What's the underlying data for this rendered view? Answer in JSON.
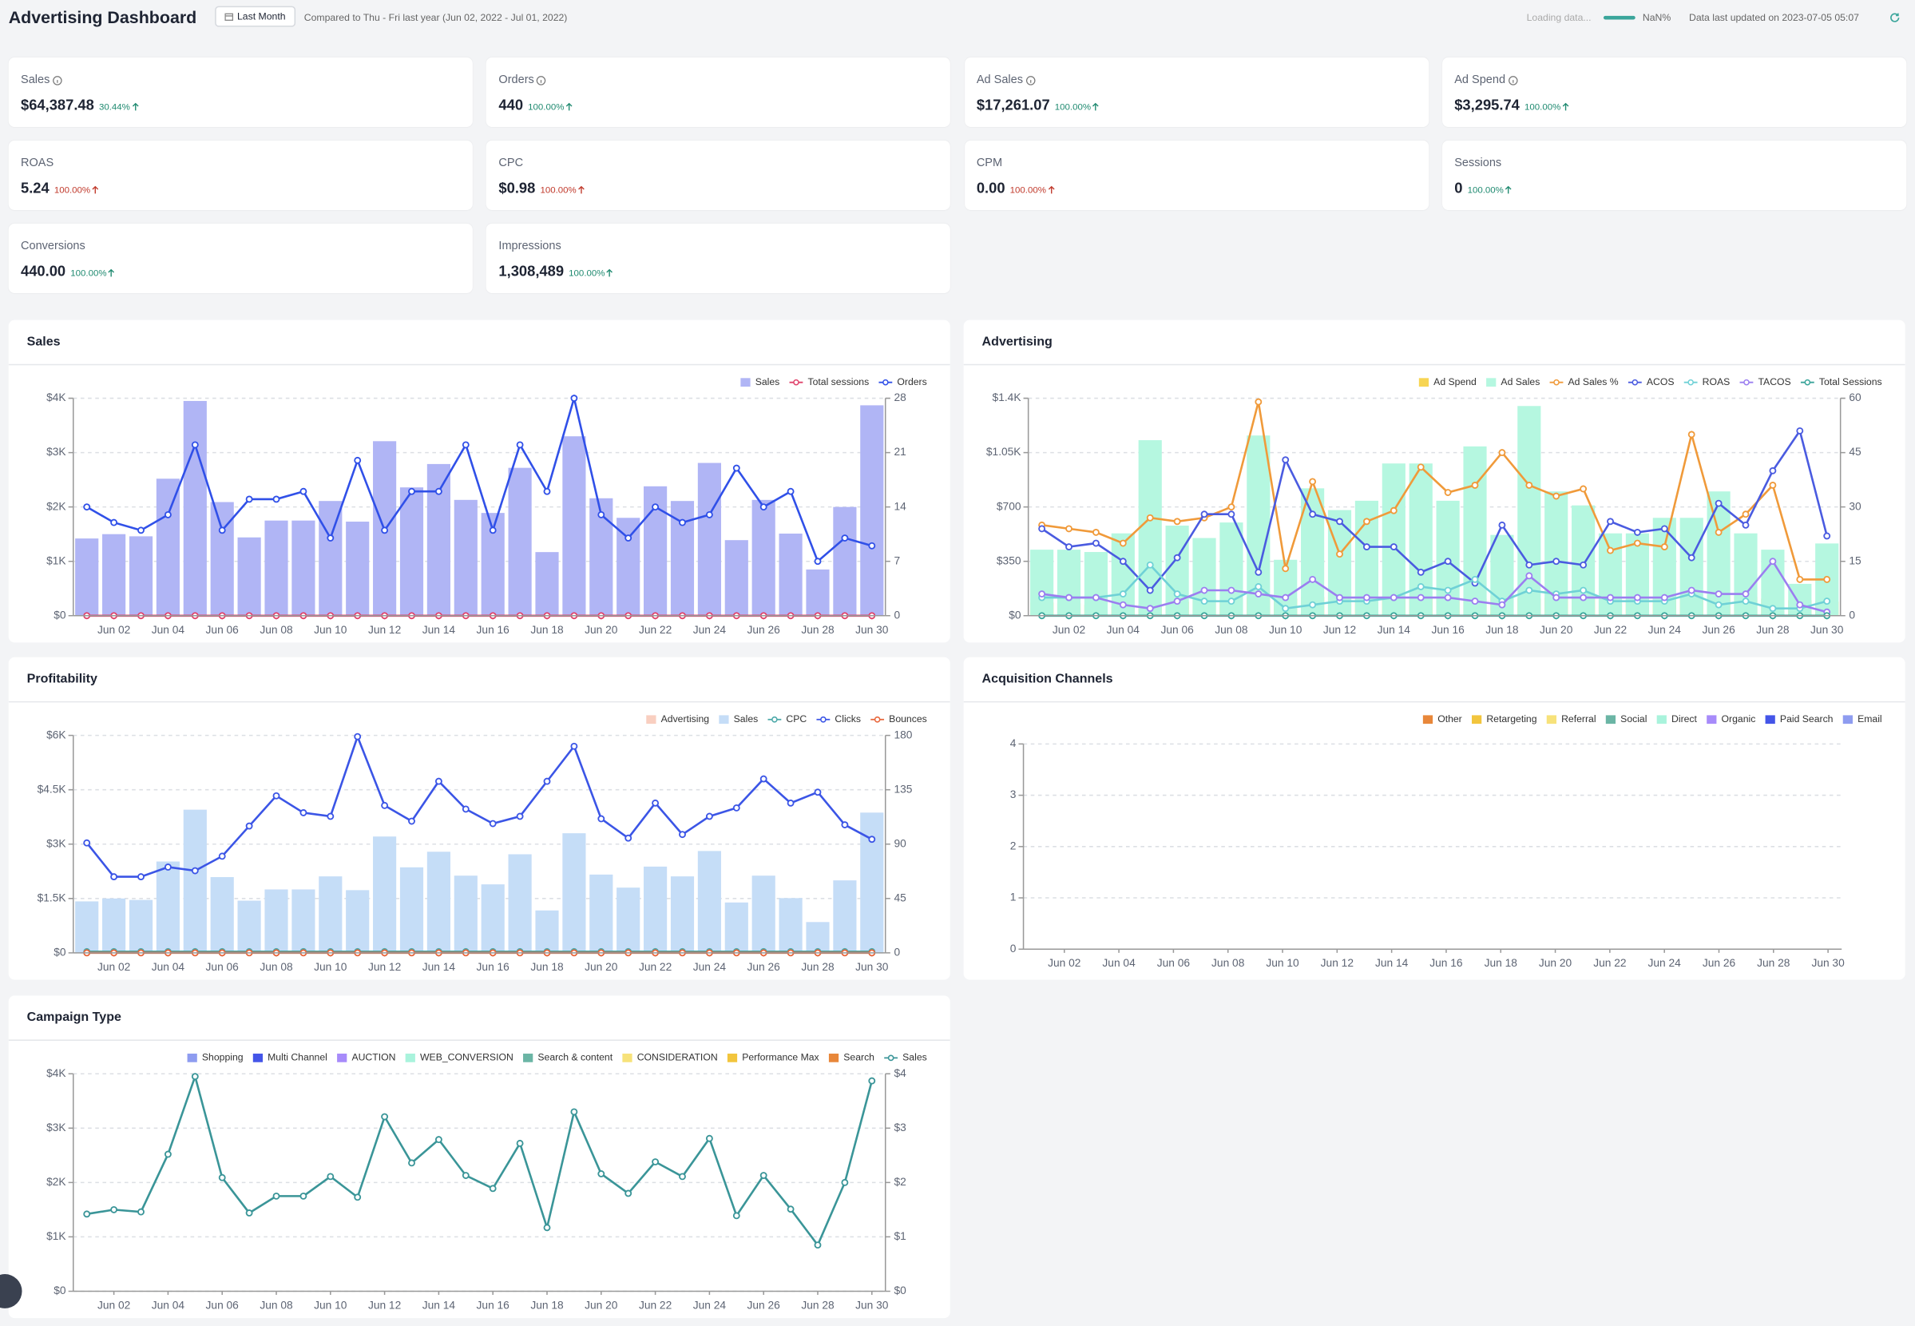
{
  "header": {
    "title": "Advertising Dashboard",
    "range_button": "Last Month",
    "comparison": "Compared to Thu - Fri last year (Jun 02, 2022 - Jul 01, 2022)",
    "loading": "Loading data...",
    "progress": "NaN%",
    "updated": "Data last updated on 2023-07-05 05:07"
  },
  "kpis": [
    {
      "label": "Sales",
      "value": "$64,387.48",
      "change": "30.44%",
      "color": "#1f8a70"
    },
    {
      "label": "Orders",
      "value": "440",
      "change": "100.00%",
      "color": "#1f8a70"
    },
    {
      "label": "Ad Sales",
      "value": "$17,261.07",
      "change": "100.00%",
      "color": "#1f8a70"
    },
    {
      "label": "Ad Spend",
      "value": "$3,295.74",
      "change": "100.00%",
      "color": "#1f8a70"
    },
    {
      "label": "ROAS",
      "value": "5.24",
      "change": "100.00%",
      "color": "#c0392b"
    },
    {
      "label": "CPC",
      "value": "$0.98",
      "change": "100.00%",
      "color": "#c0392b"
    },
    {
      "label": "CPM",
      "value": "0.00",
      "change": "100.00%",
      "color": "#c0392b"
    },
    {
      "label": "Sessions",
      "value": "0",
      "change": "100.00%",
      "color": "#1f8a70"
    },
    {
      "label": "Conversions",
      "value": "440.00",
      "change": "100.00%",
      "color": "#1f8a70"
    },
    {
      "label": "Impressions",
      "value": "1,308,489",
      "change": "100.00%",
      "color": "#1f8a70"
    }
  ],
  "chart_data": [
    {
      "type": "combo",
      "title": "Sales",
      "categories": [
        null,
        "Jun 02",
        null,
        "Jun 04",
        null,
        "Jun 06",
        null,
        "Jun 08",
        null,
        "Jun 10",
        null,
        "Jun 12",
        null,
        "Jun 14",
        null,
        "Jun 16",
        null,
        "Jun 18",
        null,
        "Jun 20",
        null,
        "Jun 22",
        null,
        "Jun 24",
        null,
        "Jun 26",
        null,
        "Jun 28",
        null,
        "Jun 30"
      ],
      "ylim": [
        0,
        4000
      ],
      "yticks": [
        {
          "value": 0,
          "label": "$0"
        },
        {
          "value": 1000,
          "label": "$1K"
        },
        {
          "value": 2000,
          "label": "$2K"
        },
        {
          "value": 3000,
          "label": "$3K"
        },
        {
          "value": 4000,
          "label": "$4K"
        }
      ],
      "y2lim": [
        0,
        28
      ],
      "y2ticks": [
        0,
        7,
        14,
        21,
        28
      ],
      "grid": true,
      "legend": "top-right",
      "series": [
        {
          "name": "Sales",
          "type": "bar",
          "color": "#b0b5f5",
          "values": [
            1420,
            1500,
            1460,
            2520,
            3950,
            2090,
            1440,
            1750,
            1750,
            2110,
            1730,
            3210,
            2360,
            2790,
            2130,
            1890,
            2720,
            1170,
            3300,
            2160,
            1800,
            2380,
            2110,
            2810,
            1390,
            2130,
            1510,
            850,
            2000,
            3870
          ]
        },
        {
          "name": "Total sessions",
          "type": "line",
          "axis": "y2",
          "color": "#e0436b",
          "values": [
            0,
            0,
            0,
            0,
            0,
            0,
            0,
            0,
            0,
            0,
            0,
            0,
            0,
            0,
            0,
            0,
            0,
            0,
            0,
            0,
            0,
            0,
            0,
            0,
            0,
            0,
            0,
            0,
            0,
            0
          ]
        },
        {
          "name": "Orders",
          "type": "line",
          "axis": "y2",
          "color": "#3050e8",
          "values": [
            14,
            12,
            11,
            13,
            22,
            11,
            15,
            15,
            16,
            10,
            20,
            11,
            16,
            16,
            22,
            11,
            22,
            16,
            28,
            13,
            10,
            14,
            12,
            13,
            19,
            14,
            16,
            7,
            10,
            9
          ]
        }
      ]
    },
    {
      "type": "combo",
      "title": "Advertising",
      "categories": [
        null,
        "Jun 02",
        null,
        "Jun 04",
        null,
        "Jun 06",
        null,
        "Jun 08",
        null,
        "Jun 10",
        null,
        "Jun 12",
        null,
        "Jun 14",
        null,
        "Jun 16",
        null,
        "Jun 18",
        null,
        "Jun 20",
        null,
        "Jun 22",
        null,
        "Jun 24",
        null,
        "Jun 26",
        null,
        "Jun 28",
        null,
        "Jun 30"
      ],
      "ylim": [
        0,
        1400
      ],
      "yticks": [
        {
          "value": 0,
          "label": "$0"
        },
        {
          "value": 350,
          "label": "$350"
        },
        {
          "value": 700,
          "label": "$700"
        },
        {
          "value": 1050,
          "label": "$1.05K"
        },
        {
          "value": 1400,
          "label": "$1.4K"
        }
      ],
      "y2lim": [
        0,
        60
      ],
      "y2ticks": [
        0,
        15,
        30,
        45,
        60
      ],
      "grid": true,
      "legend": "top-right",
      "series": [
        {
          "name": "Ad Spend",
          "type": "bar",
          "color": "#f7d553",
          "values": [
            85,
            80,
            70,
            60,
            75,
            90,
            110,
            95,
            120,
            110,
            120,
            150,
            130,
            125,
            120,
            115,
            110,
            125,
            110,
            115,
            110,
            100,
            105,
            115,
            110,
            130,
            120,
            110,
            100,
            90
          ]
        },
        {
          "name": "Ad Sales",
          "type": "bar",
          "color": "#b5f7e0",
          "values": [
            425,
            425,
            410,
            530,
            1130,
            580,
            500,
            600,
            1160,
            360,
            820,
            680,
            740,
            980,
            980,
            740,
            1090,
            520,
            1350,
            800,
            710,
            530,
            530,
            630,
            630,
            800,
            530,
            425,
            205,
            465
          ]
        },
        {
          "name": "Ad Sales %",
          "type": "line",
          "axis": "y2",
          "color": "#f09a3a",
          "values": [
            25,
            24,
            23,
            20,
            27,
            26,
            27,
            30,
            59,
            13,
            37,
            17,
            26,
            29,
            41,
            34,
            36,
            45,
            36,
            33,
            35,
            18,
            20,
            19,
            50,
            23,
            28,
            36,
            10,
            10
          ]
        },
        {
          "name": "ACOS",
          "type": "line",
          "axis": "y2",
          "color": "#4a5be0",
          "values": [
            24,
            19,
            20,
            15,
            7,
            16,
            28,
            28,
            12,
            43,
            28,
            26,
            19,
            19,
            12,
            15,
            9,
            25,
            14,
            15,
            14,
            26,
            23,
            24,
            16,
            31,
            25,
            40,
            51,
            22
          ]
        },
        {
          "name": "ROAS",
          "type": "line",
          "axis": "y2",
          "color": "#6fd1d6",
          "values": [
            5,
            5,
            5,
            6,
            14,
            6,
            4,
            4,
            8,
            2,
            3,
            4,
            4,
            5,
            8,
            7,
            10,
            4,
            7,
            6,
            7,
            4,
            4,
            4,
            6,
            3,
            4,
            2,
            2,
            4
          ]
        },
        {
          "name": "TACOS",
          "type": "line",
          "axis": "y2",
          "color": "#9b7ef0",
          "values": [
            6,
            5,
            5,
            3,
            2,
            4,
            7,
            7,
            6,
            5,
            10,
            5,
            5,
            5,
            5,
            5,
            4,
            3,
            11,
            5,
            5,
            5,
            5,
            5,
            7,
            6,
            6,
            15,
            3,
            1
          ]
        },
        {
          "name": "Total Sessions",
          "type": "line",
          "axis": "y2",
          "color": "#3aa59b",
          "values": [
            0,
            0,
            0,
            0,
            0,
            0,
            0,
            0,
            0,
            0,
            0,
            0,
            0,
            0,
            0,
            0,
            0,
            0,
            0,
            0,
            0,
            0,
            0,
            0,
            0,
            0,
            0,
            0,
            0,
            0
          ]
        }
      ]
    },
    {
      "type": "combo",
      "title": "Profitability",
      "categories": [
        null,
        "Jun 02",
        null,
        "Jun 04",
        null,
        "Jun 06",
        null,
        "Jun 08",
        null,
        "Jun 10",
        null,
        "Jun 12",
        null,
        "Jun 14",
        null,
        "Jun 16",
        null,
        "Jun 18",
        null,
        "Jun 20",
        null,
        "Jun 22",
        null,
        "Jun 24",
        null,
        "Jun 26",
        null,
        "Jun 28",
        null,
        "Jun 30"
      ],
      "ylim": [
        0,
        6000
      ],
      "yticks": [
        {
          "value": 0,
          "label": "$0"
        },
        {
          "value": 1500,
          "label": "$1.5K"
        },
        {
          "value": 3000,
          "label": "$3K"
        },
        {
          "value": 4500,
          "label": "$4.5K"
        },
        {
          "value": 6000,
          "label": "$6K"
        }
      ],
      "y2lim": [
        0,
        180
      ],
      "y2ticks": [
        0,
        45,
        90,
        135,
        180
      ],
      "grid": true,
      "legend": "top-right",
      "series": [
        {
          "name": "Advertising",
          "type": "bar",
          "color": "#f9cfc0",
          "values": [
            0,
            0,
            0,
            0,
            0,
            0,
            0,
            0,
            0,
            0,
            0,
            0,
            0,
            0,
            0,
            0,
            0,
            0,
            0,
            0,
            0,
            0,
            0,
            0,
            0,
            0,
            0,
            0,
            0,
            0
          ]
        },
        {
          "name": "Sales",
          "type": "bar",
          "color": "#c5ddf7",
          "values": [
            1420,
            1500,
            1460,
            2520,
            3950,
            2090,
            1440,
            1750,
            1750,
            2110,
            1730,
            3210,
            2360,
            2790,
            2130,
            1890,
            2720,
            1170,
            3300,
            2160,
            1800,
            2380,
            2110,
            2810,
            1390,
            2130,
            1510,
            850,
            2000,
            3870
          ]
        },
        {
          "name": "CPC",
          "type": "line",
          "axis": "y2",
          "color": "#4aa8a8",
          "values": [
            1,
            1,
            1,
            1,
            1,
            1,
            1,
            1,
            1,
            1,
            1,
            1,
            1,
            1,
            1,
            1,
            1,
            1,
            1,
            1,
            1,
            1,
            1,
            1,
            1,
            1,
            1,
            1,
            1,
            1
          ]
        },
        {
          "name": "Clicks",
          "type": "line",
          "axis": "y2",
          "color": "#3b55e6",
          "values": [
            91,
            63,
            63,
            71,
            68,
            80,
            105,
            130,
            116,
            113,
            179,
            122,
            109,
            142,
            119,
            107,
            113,
            142,
            171,
            111,
            95,
            124,
            98,
            113,
            120,
            144,
            124,
            133,
            106,
            94
          ]
        },
        {
          "name": "Bounces",
          "type": "line",
          "axis": "y2",
          "color": "#e8663a",
          "values": [
            0,
            0,
            0,
            0,
            0,
            0,
            0,
            0,
            0,
            0,
            0,
            0,
            0,
            0,
            0,
            0,
            0,
            0,
            0,
            0,
            0,
            0,
            0,
            0,
            0,
            0,
            0,
            0,
            0,
            0
          ]
        }
      ]
    },
    {
      "type": "combo",
      "title": "Acquisition Channels",
      "categories": [
        null,
        "Jun 02",
        null,
        "Jun 04",
        null,
        "Jun 06",
        null,
        "Jun 08",
        null,
        "Jun 10",
        null,
        "Jun 12",
        null,
        "Jun 14",
        null,
        "Jun 16",
        null,
        "Jun 18",
        null,
        "Jun 20",
        null,
        "Jun 22",
        null,
        "Jun 24",
        null,
        "Jun 26",
        null,
        "Jun 28",
        null,
        "Jun 30"
      ],
      "ylim": [
        0,
        4
      ],
      "yticks": [
        0,
        1,
        2,
        3,
        4
      ],
      "grid": true,
      "legend": "top-right",
      "series": [
        {
          "name": "Other",
          "type": "bar",
          "color": "#e8873a"
        },
        {
          "name": "Retargeting",
          "type": "bar",
          "color": "#f2c53d"
        },
        {
          "name": "Referral",
          "type": "bar",
          "color": "#f7e27a"
        },
        {
          "name": "Social",
          "type": "bar",
          "color": "#6bb5a5"
        },
        {
          "name": "Direct",
          "type": "bar",
          "color": "#a9f3dc"
        },
        {
          "name": "Organic",
          "type": "bar",
          "color": "#a78bfa"
        },
        {
          "name": "Paid Search",
          "type": "bar",
          "color": "#4455e8"
        },
        {
          "name": "Email",
          "type": "bar",
          "color": "#8e9cf0"
        }
      ]
    },
    {
      "type": "combo",
      "title": "Campaign Type",
      "categories": [
        null,
        "Jun 02",
        null,
        "Jun 04",
        null,
        "Jun 06",
        null,
        "Jun 08",
        null,
        "Jun 10",
        null,
        "Jun 12",
        null,
        "Jun 14",
        null,
        "Jun 16",
        null,
        "Jun 18",
        null,
        "Jun 20",
        null,
        "Jun 22",
        null,
        "Jun 24",
        null,
        "Jun 26",
        null,
        "Jun 28",
        null,
        "Jun 30"
      ],
      "ylim": [
        0,
        4000
      ],
      "yticks": [
        {
          "value": 0,
          "label": "$0"
        },
        {
          "value": 1000,
          "label": "$1K"
        },
        {
          "value": 2000,
          "label": "$2K"
        },
        {
          "value": 3000,
          "label": "$3K"
        },
        {
          "value": 4000,
          "label": "$4K"
        }
      ],
      "y2lim": [
        0,
        4
      ],
      "y2ticks": [
        {
          "value": 0,
          "label": "$0"
        },
        {
          "value": 1,
          "label": "$1"
        },
        {
          "value": 2,
          "label": "$2"
        },
        {
          "value": 3,
          "label": "$3"
        },
        {
          "value": 4,
          "label": "$4"
        }
      ],
      "grid": true,
      "legend": "top-right",
      "series": [
        {
          "name": "Shopping",
          "type": "bar",
          "color": "#8e9cf0"
        },
        {
          "name": "Multi Channel",
          "type": "bar",
          "color": "#4455e8"
        },
        {
          "name": "AUCTION",
          "type": "bar",
          "color": "#a78bfa"
        },
        {
          "name": "WEB_CONVERSION",
          "type": "bar",
          "color": "#a9f3dc"
        },
        {
          "name": "Search & content",
          "type": "bar",
          "color": "#6bb5a5"
        },
        {
          "name": "CONSIDERATION",
          "type": "bar",
          "color": "#f7e27a"
        },
        {
          "name": "Performance Max",
          "type": "bar",
          "color": "#f2c53d"
        },
        {
          "name": "Search",
          "type": "bar",
          "color": "#e8873a"
        },
        {
          "name": "Sales",
          "type": "line",
          "color": "#3a9598",
          "values": [
            1420,
            1500,
            1460,
            2520,
            3950,
            2090,
            1440,
            1750,
            1750,
            2110,
            1730,
            3210,
            2360,
            2790,
            2130,
            1890,
            2720,
            1170,
            3300,
            2160,
            1800,
            2380,
            2110,
            2810,
            1390,
            2130,
            1510,
            850,
            2000,
            3870
          ]
        }
      ]
    }
  ]
}
